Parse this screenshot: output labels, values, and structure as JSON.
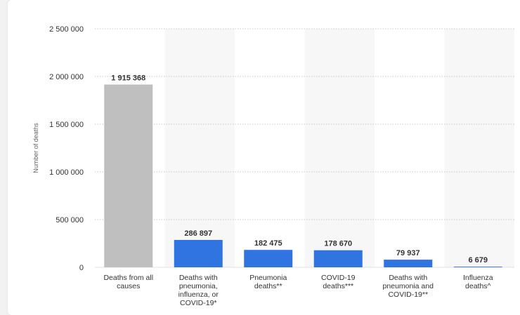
{
  "chart_data": {
    "type": "bar",
    "ylabel": "Number of deaths",
    "ylim": [
      0,
      2500000
    ],
    "yticks": [
      0,
      500000,
      1000000,
      1500000,
      2000000,
      2500000
    ],
    "ytick_labels": [
      "0",
      "500 000",
      "1 000 000",
      "1 500 000",
      "2 000 000",
      "2 500 000"
    ],
    "grid": true,
    "categories": [
      [
        "Deaths from all",
        "causes"
      ],
      [
        "Deaths with",
        "pneumonia,",
        "influenza, or",
        "COVID-19*"
      ],
      [
        "Pneumonia",
        "deaths**"
      ],
      [
        "COVID-19",
        "deaths***"
      ],
      [
        "Deaths with",
        "pneumonia and",
        "COVID-19**"
      ],
      [
        "Influenza",
        "deaths^"
      ]
    ],
    "values": [
      1915368,
      286897,
      182475,
      178670,
      79937,
      6679
    ],
    "value_labels": [
      "1 915 368",
      "286 897",
      "182 475",
      "178 670",
      "79 937",
      "6 679"
    ],
    "bar_colors": [
      "#bfbfbf",
      "#2f74e0",
      "#2f74e0",
      "#2f74e0",
      "#2f74e0",
      "#2f74e0"
    ]
  }
}
